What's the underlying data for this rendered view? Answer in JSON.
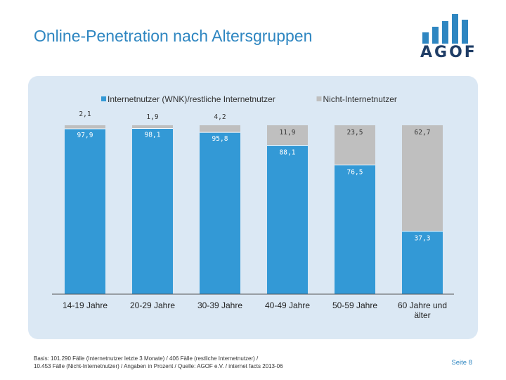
{
  "slide": {
    "title": "Online-Penetration nach Altersgruppen",
    "logo_text": "AGOF",
    "footer_line1": "Basis: 101.290 Fälle (Internetnutzer letzte 3 Monate) / 406 Fälle (restliche Internetnutzer) /",
    "footer_line2": "10.453 Fälle (Nicht-Internetnutzer) / Angaben in Prozent / Quelle: AGOF e.V. / internet facts 2013-06",
    "page_label": "Seite 8"
  },
  "colors": {
    "series_blue": "#3399d6",
    "series_gray": "#bfbfbf",
    "accent": "#2e86c1",
    "logo_dark": "#1f3d66"
  },
  "chart_data": {
    "type": "bar",
    "stacked": true,
    "ylim": [
      0,
      100
    ],
    "legend_position": "top",
    "grid": false,
    "categories": [
      "14-19 Jahre",
      "20-29 Jahre",
      "30-39 Jahre",
      "40-49 Jahre",
      "50-59 Jahre",
      "60 Jahre und älter"
    ],
    "series": [
      {
        "name": "Internetnutzer (WNK)/restliche Internetnutzer",
        "color": "#3399d6",
        "values": [
          97.9,
          98.1,
          95.8,
          88.1,
          76.5,
          37.3
        ],
        "labels": [
          "97,9",
          "98,1",
          "95,8",
          "88,1",
          "76,5",
          "37,3"
        ]
      },
      {
        "name": "Nicht-Internetnutzer",
        "color": "#bfbfbf",
        "values": [
          2.1,
          1.9,
          4.2,
          11.9,
          23.5,
          62.7
        ],
        "labels": [
          "2,1",
          "1,9",
          "4,2",
          "11,9",
          "23,5",
          "62,7"
        ]
      }
    ]
  }
}
